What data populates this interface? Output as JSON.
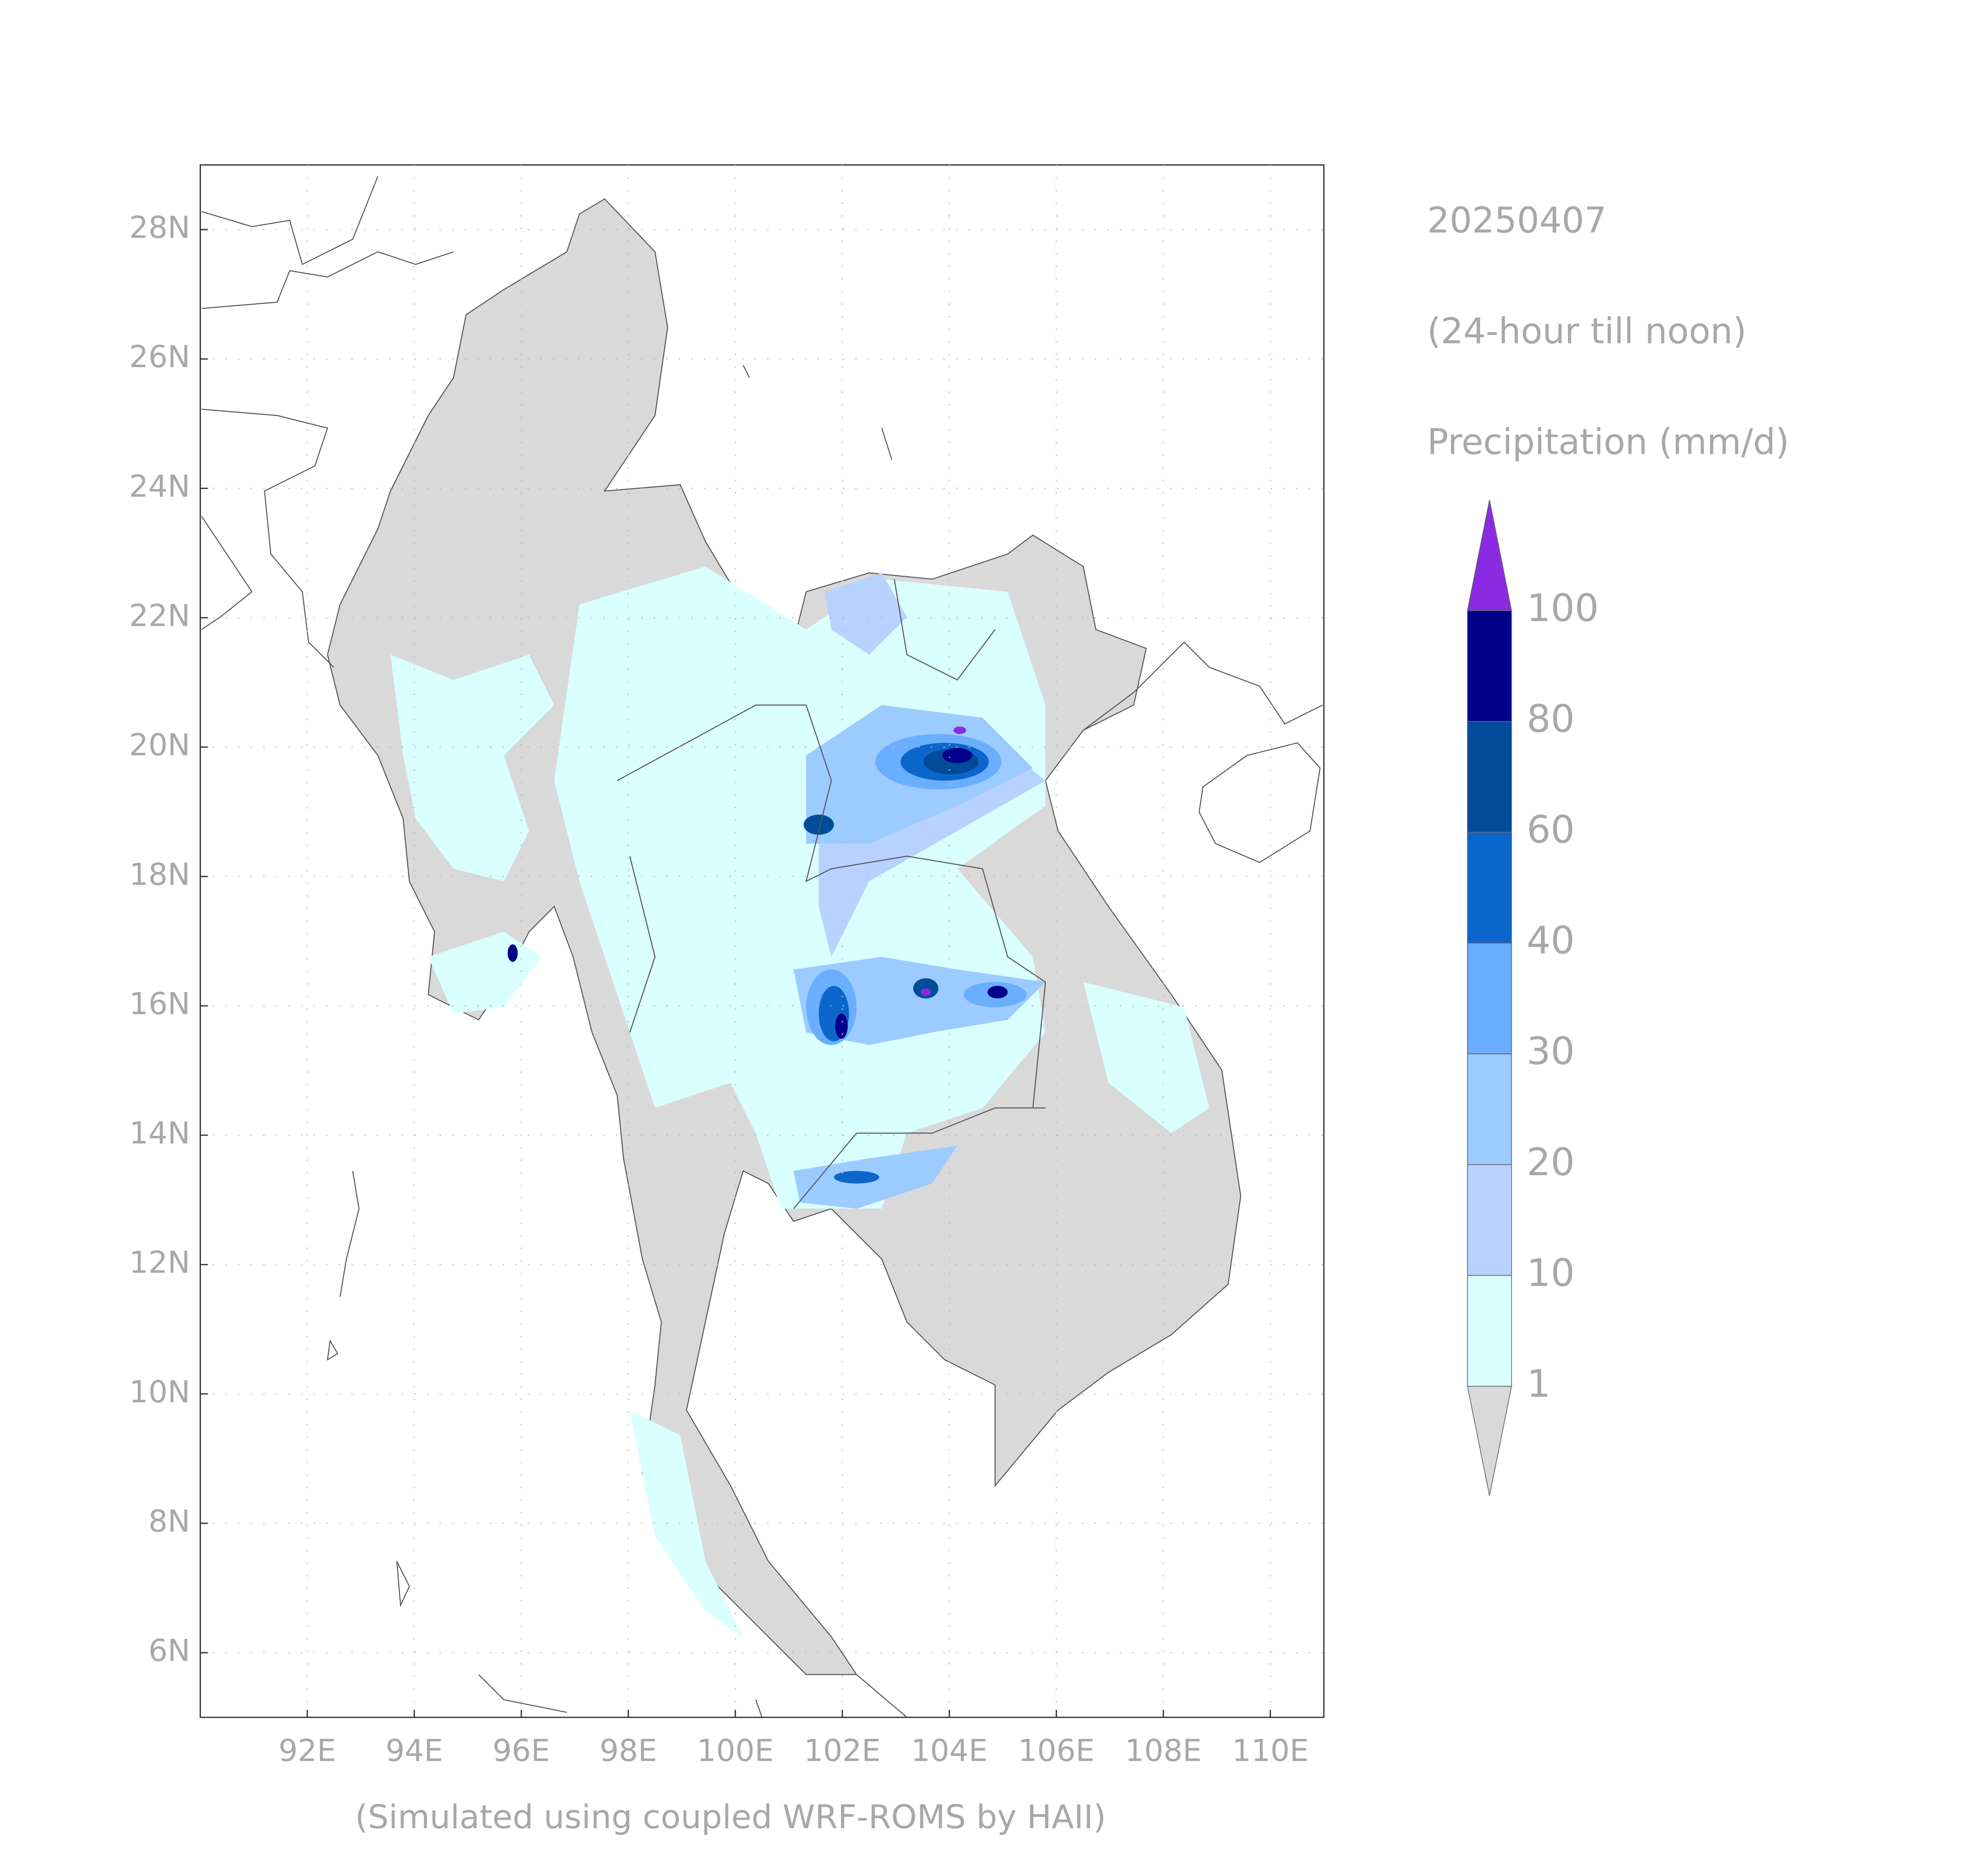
{
  "chart_data": {
    "type": "map",
    "title": "20250407",
    "subtitle": "(24-hour till noon)",
    "colorbar_label": "Precipitation (mm/d)",
    "caption": "(Simulated using coupled WRF-ROMS by HAII)",
    "xlim": [
      90,
      111
    ],
    "ylim": [
      5,
      29
    ],
    "xticks": [
      {
        "value": 92,
        "label": "92E"
      },
      {
        "value": 94,
        "label": "94E"
      },
      {
        "value": 96,
        "label": "96E"
      },
      {
        "value": 98,
        "label": "98E"
      },
      {
        "value": 100,
        "label": "100E"
      },
      {
        "value": 102,
        "label": "102E"
      },
      {
        "value": 104,
        "label": "104E"
      },
      {
        "value": 106,
        "label": "106E"
      },
      {
        "value": 108,
        "label": "108E"
      },
      {
        "value": 110,
        "label": "110E"
      }
    ],
    "yticks": [
      {
        "value": 6,
        "label": "6N"
      },
      {
        "value": 8,
        "label": "8N"
      },
      {
        "value": 10,
        "label": "10N"
      },
      {
        "value": 12,
        "label": "12N"
      },
      {
        "value": 14,
        "label": "14N"
      },
      {
        "value": 16,
        "label": "16N"
      },
      {
        "value": 18,
        "label": "18N"
      },
      {
        "value": 20,
        "label": "20N"
      },
      {
        "value": 22,
        "label": "22N"
      },
      {
        "value": 24,
        "label": "24N"
      },
      {
        "value": 26,
        "label": "26N"
      },
      {
        "value": 28,
        "label": "28N"
      }
    ],
    "grid": true,
    "colorbar": {
      "levels": [
        1,
        10,
        20,
        30,
        40,
        60,
        80,
        100
      ],
      "colors": [
        "#d9ffff",
        "#b7d2ff",
        "#9ccbff",
        "#6aaeff",
        "#0b66cc",
        "#004c99",
        "#00008b"
      ],
      "under_color": "#d9d9d9",
      "over_color": "#8a2be2"
    }
  }
}
